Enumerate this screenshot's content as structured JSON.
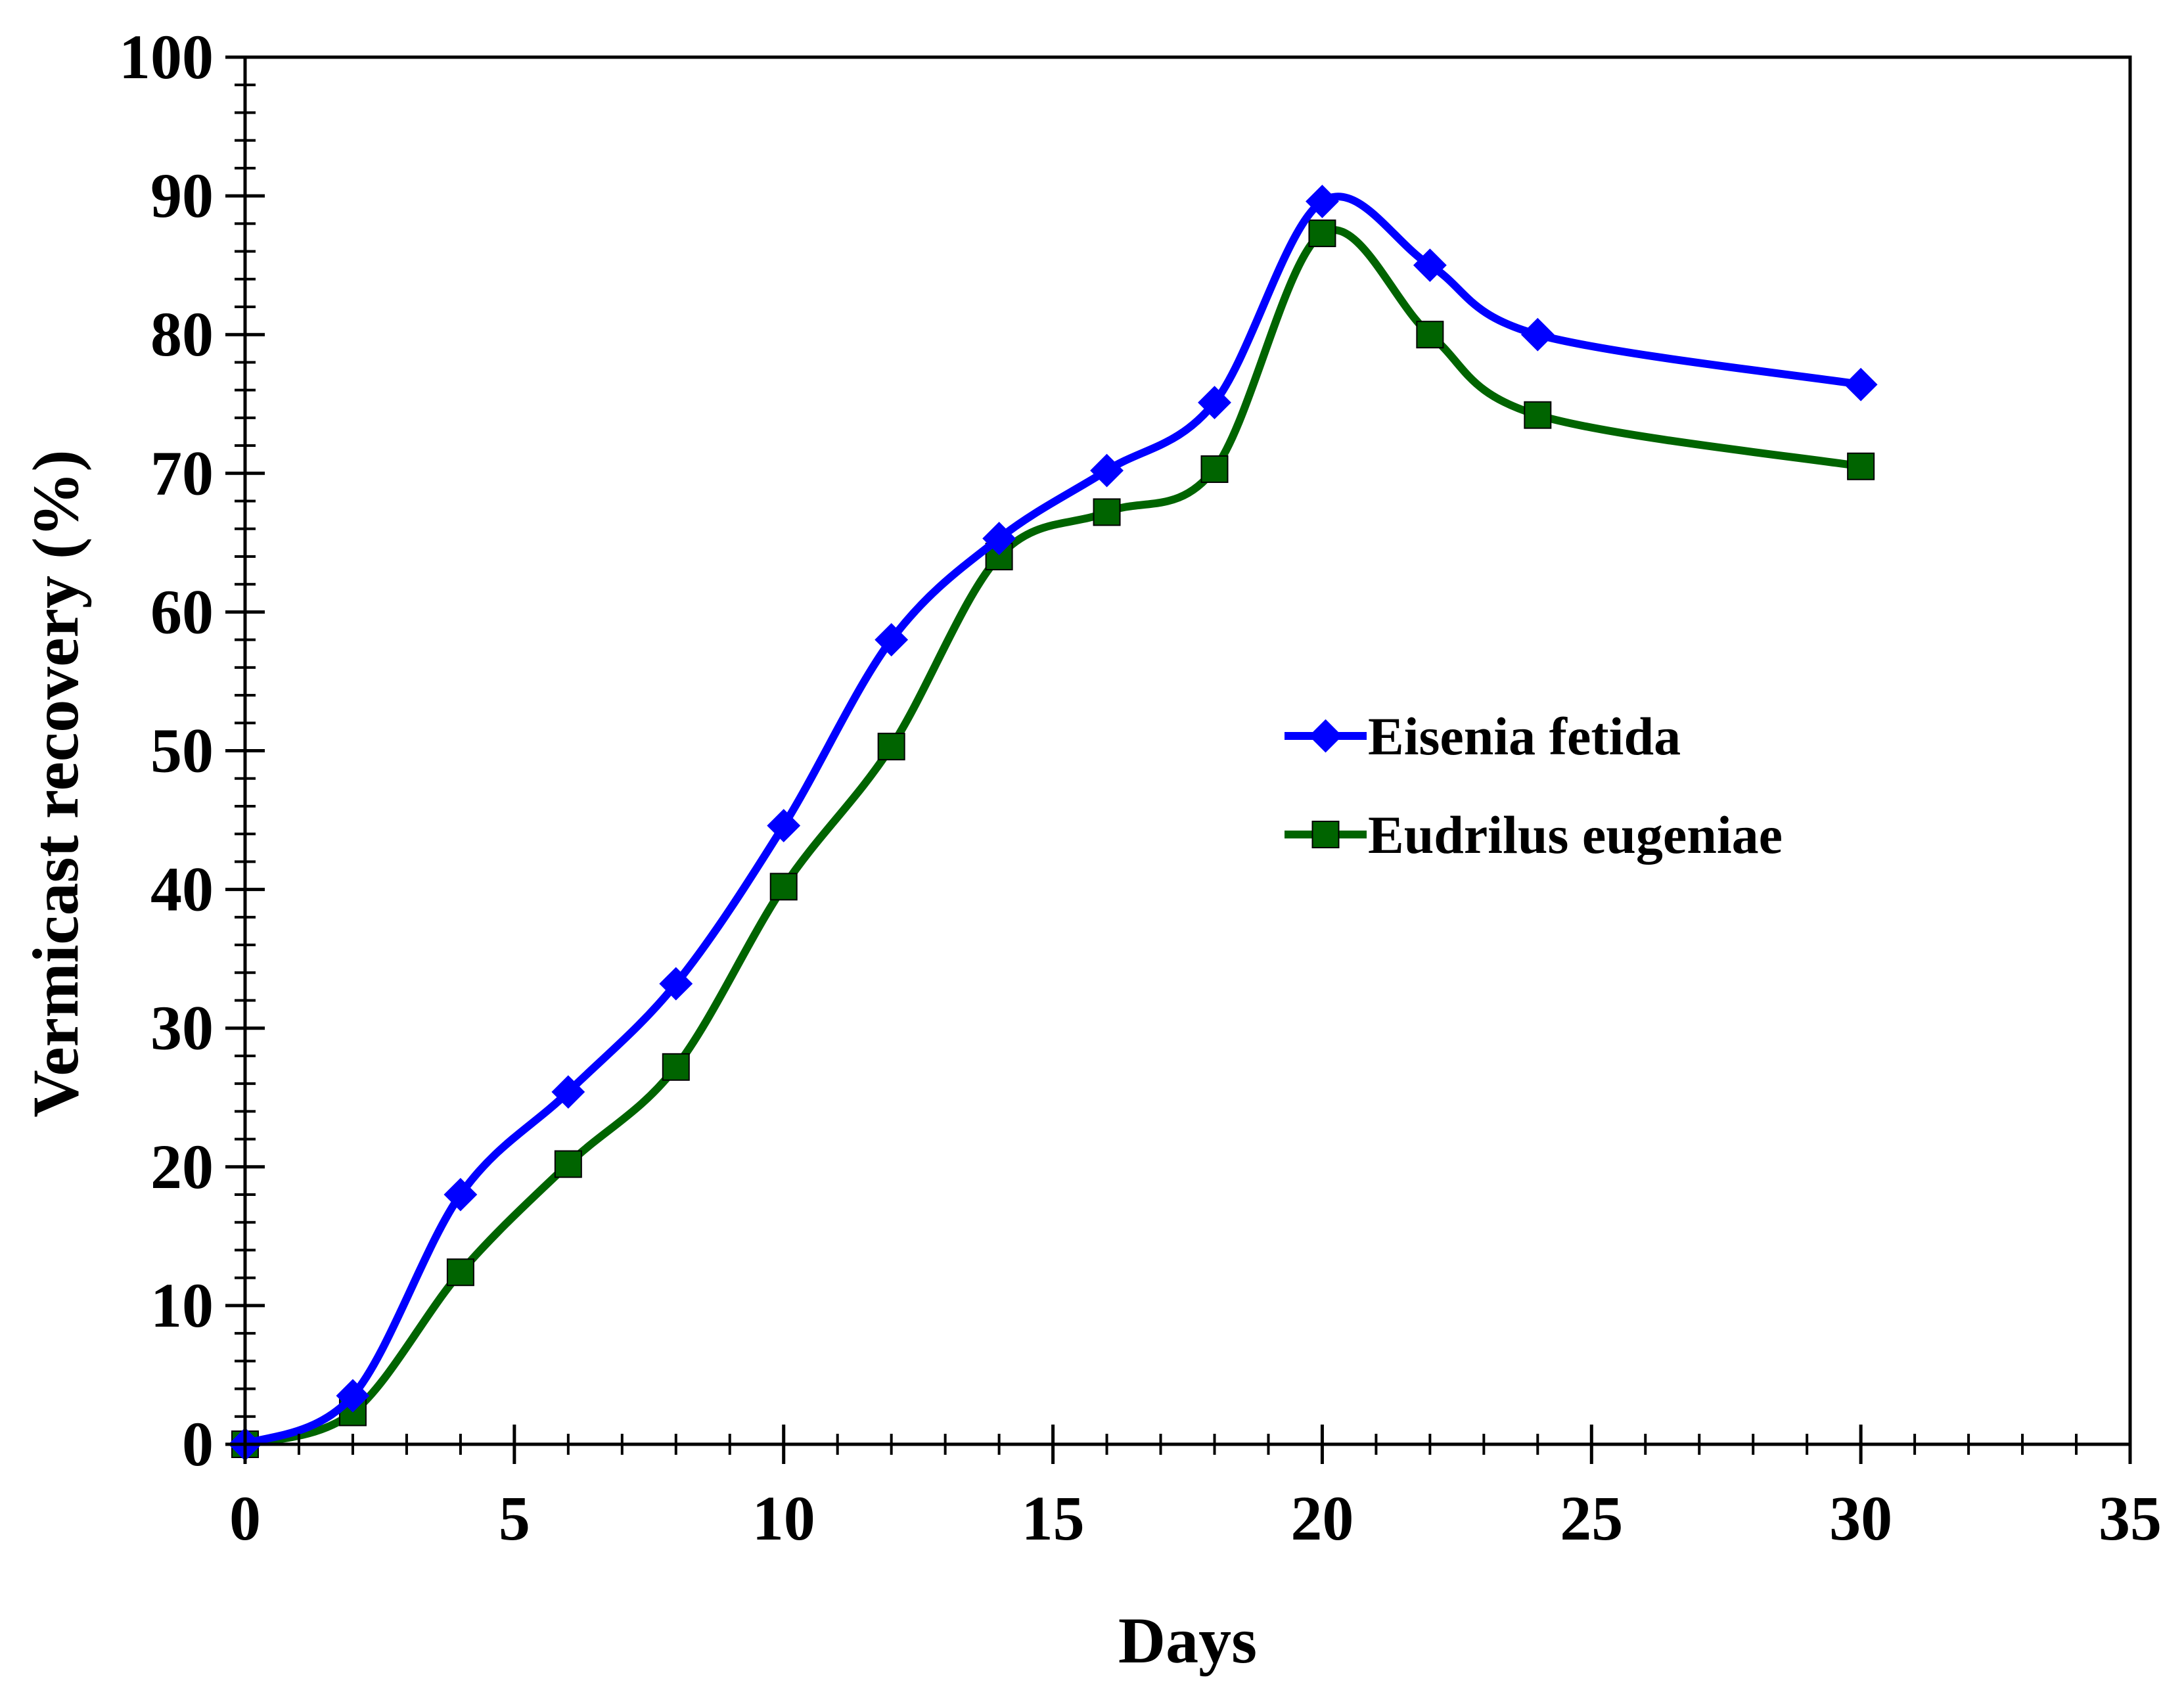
{
  "chart_data": {
    "type": "line",
    "title": "",
    "xlabel": "Days",
    "ylabel": "Vermicast recovery (%)",
    "xlim": [
      0,
      35
    ],
    "ylim": [
      0,
      100
    ],
    "x_ticks": [
      0,
      5,
      10,
      15,
      20,
      25,
      30,
      35
    ],
    "y_ticks": [
      0,
      10,
      20,
      30,
      40,
      50,
      60,
      70,
      80,
      90,
      100
    ],
    "x_minor_step": 1,
    "y_minor_step": 2,
    "grid": false,
    "smooth": true,
    "legend_position": "center-right",
    "series": [
      {
        "name": "Eisenia fetida",
        "color": "#0000ff",
        "marker": "diamond",
        "x": [
          0,
          2,
          4,
          6,
          8,
          10,
          12,
          14,
          16,
          18,
          20,
          22,
          24,
          30
        ],
        "values": [
          0,
          3.5,
          18,
          25.4,
          33.2,
          44.6,
          58,
          65.3,
          70.2,
          75.1,
          89.6,
          85,
          80,
          76.4
        ]
      },
      {
        "name": "Eudrilus eugeniae",
        "color": "#006400",
        "marker": "square",
        "x": [
          0,
          2,
          4,
          6,
          8,
          10,
          12,
          14,
          16,
          18,
          20,
          22,
          24,
          30
        ],
        "values": [
          0,
          2.3,
          12.4,
          20.2,
          27.2,
          40.2,
          50.3,
          64,
          67.2,
          70.3,
          87.3,
          80,
          74.2,
          70.5
        ]
      }
    ]
  }
}
